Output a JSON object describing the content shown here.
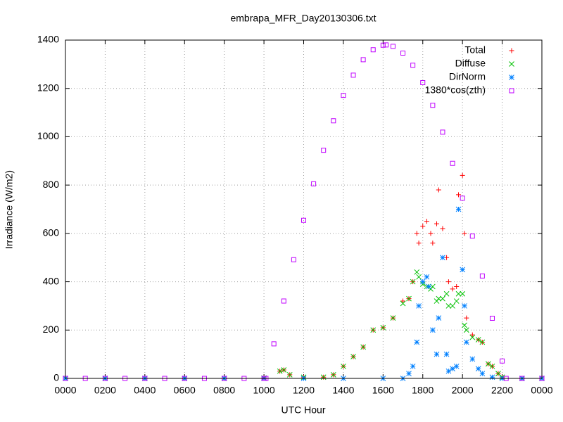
{
  "chart_data": {
    "type": "scatter",
    "title": "embrapa_MFR_Day20130306.txt",
    "x_label": "UTC Hour",
    "y_label": "Irradiance (W/m2)",
    "xlim": [
      0,
      24
    ],
    "ylim": [
      0,
      1400
    ],
    "xticks": [
      {
        "value": 0,
        "label": "0000"
      },
      {
        "value": 2,
        "label": "0200"
      },
      {
        "value": 4,
        "label": "0400"
      },
      {
        "value": 6,
        "label": "0600"
      },
      {
        "value": 8,
        "label": "0800"
      },
      {
        "value": 10,
        "label": "1000"
      },
      {
        "value": 12,
        "label": "1200"
      },
      {
        "value": 14,
        "label": "1400"
      },
      {
        "value": 16,
        "label": "1600"
      },
      {
        "value": 18,
        "label": "1800"
      },
      {
        "value": 20,
        "label": "2000"
      },
      {
        "value": 22,
        "label": "2200"
      },
      {
        "value": 24,
        "label": "0000"
      }
    ],
    "yticks": [
      0,
      200,
      400,
      600,
      800,
      1000,
      1200,
      1400
    ],
    "grid": true,
    "legend": "top-right",
    "series": [
      {
        "name": "Total",
        "color": "#ff0000",
        "marker": "plus",
        "x": [
          0,
          2,
          4,
          6,
          8,
          10,
          10.8,
          11,
          11.3,
          12,
          13,
          13.5,
          14,
          14.5,
          15,
          15.5,
          16,
          16.5,
          17,
          17.3,
          17.5,
          17.7,
          17.8,
          18,
          18.2,
          18.4,
          18.5,
          18.7,
          18.8,
          19,
          19.2,
          19.3,
          19.5,
          19.7,
          19.8,
          20,
          20.1,
          20.2,
          20.5,
          20.8,
          21,
          21.3,
          21.5,
          21.8,
          22,
          23,
          24
        ],
        "values": [
          0,
          0,
          0,
          0,
          0,
          2,
          30,
          35,
          15,
          5,
          5,
          15,
          50,
          90,
          130,
          200,
          210,
          250,
          320,
          330,
          400,
          600,
          560,
          630,
          650,
          600,
          560,
          640,
          780,
          620,
          500,
          400,
          370,
          380,
          760,
          840,
          600,
          250,
          180,
          160,
          150,
          60,
          50,
          20,
          5,
          0,
          0
        ]
      },
      {
        "name": "Diffuse",
        "color": "#00c000",
        "marker": "cross",
        "x": [
          0,
          2,
          4,
          6,
          8,
          10,
          10.8,
          11,
          11.3,
          12,
          13,
          13.5,
          14,
          14.5,
          15,
          15.5,
          16,
          16.5,
          17,
          17.3,
          17.5,
          17.7,
          17.8,
          18,
          18.2,
          18.4,
          18.5,
          18.7,
          18.8,
          19,
          19.2,
          19.3,
          19.5,
          19.7,
          19.8,
          20,
          20.1,
          20.2,
          20.5,
          20.8,
          21,
          21.3,
          21.5,
          21.8,
          22,
          23,
          24
        ],
        "values": [
          0,
          0,
          0,
          0,
          0,
          2,
          30,
          35,
          15,
          5,
          5,
          15,
          50,
          90,
          130,
          200,
          210,
          250,
          310,
          330,
          400,
          440,
          420,
          390,
          380,
          370,
          380,
          320,
          330,
          330,
          350,
          300,
          300,
          320,
          350,
          350,
          220,
          200,
          170,
          160,
          150,
          60,
          50,
          20,
          5,
          0,
          0
        ]
      },
      {
        "name": "DirNorm",
        "color": "#0080ff",
        "marker": "star",
        "x": [
          0,
          2,
          4,
          6,
          8,
          10,
          12,
          14,
          16,
          17,
          17.3,
          17.5,
          17.7,
          17.8,
          18,
          18.2,
          18.3,
          18.5,
          18.7,
          18.8,
          19,
          19.2,
          19.3,
          19.5,
          19.7,
          19.8,
          20,
          20.1,
          20.2,
          20.5,
          20.8,
          21,
          21.5,
          22,
          23,
          24
        ],
        "values": [
          0,
          0,
          0,
          0,
          0,
          0,
          0,
          0,
          0,
          0,
          20,
          50,
          150,
          300,
          400,
          420,
          380,
          200,
          100,
          250,
          500,
          100,
          30,
          40,
          50,
          700,
          450,
          300,
          150,
          80,
          40,
          20,
          5,
          0,
          0,
          0
        ]
      },
      {
        "name": "1380*cos(zth)",
        "color": "#c000ff",
        "marker": "square",
        "x": [
          0,
          1,
          2,
          3,
          4,
          5,
          6,
          7,
          8,
          9,
          10,
          10.1,
          10.5,
          11,
          11.5,
          12,
          12.5,
          13,
          13.5,
          14,
          14.5,
          15,
          15.5,
          16,
          16.15,
          16.5,
          17,
          17.5,
          18,
          18.5,
          19,
          19.5,
          20,
          20.5,
          21,
          21.5,
          22,
          22.2,
          23,
          24
        ],
        "values": [
          0,
          0,
          0,
          0,
          0,
          0,
          0,
          0,
          0,
          0,
          0,
          0,
          143,
          320,
          491,
          654,
          805,
          944,
          1066,
          1171,
          1255,
          1319,
          1360,
          1379,
          1380,
          1374,
          1346,
          1296,
          1224,
          1130,
          1019,
          890,
          746,
          589,
          424,
          249,
          72,
          0,
          0,
          0
        ]
      }
    ]
  }
}
